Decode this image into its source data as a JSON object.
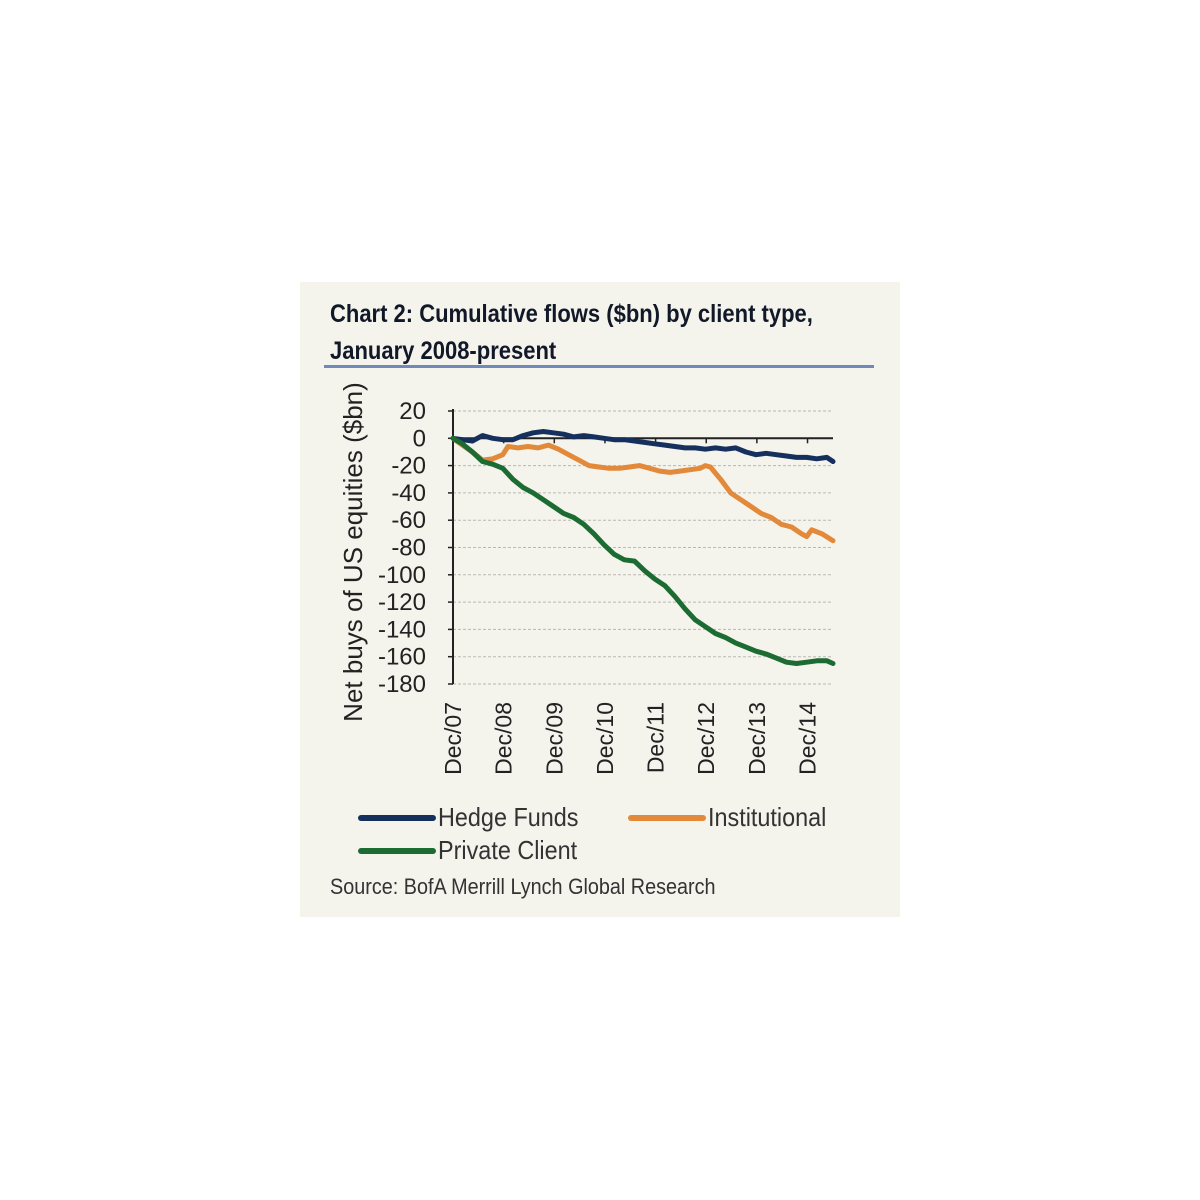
{
  "title_line1": "Chart 2: Cumulative flows ($bn) by client type,",
  "title_line2": "January 2008-present",
  "source": "Source: BofA Merrill Lynch Global Research",
  "colors": {
    "hedge_funds": "#16305e",
    "institutional": "#e2893a",
    "private_client": "#1b6b32",
    "panel_background": "#f4f3ec",
    "title_rule": "#7089b8"
  },
  "chart_data": {
    "type": "line",
    "ylabel": "Net buys of US equities ($bn)",
    "xlabel": "",
    "ylim": [
      -180,
      20
    ],
    "yticks": [
      20,
      0,
      -20,
      -40,
      -60,
      -80,
      -100,
      -120,
      -140,
      -160,
      -180
    ],
    "xlim": [
      2007.917,
      2015.42
    ],
    "xticks": [
      {
        "label": "Dec/07",
        "x": 2007.917
      },
      {
        "label": "Dec/08",
        "x": 2008.917
      },
      {
        "label": "Dec/09",
        "x": 2009.917
      },
      {
        "label": "Dec/10",
        "x": 2010.917
      },
      {
        "label": "Dec/11",
        "x": 2011.917
      },
      {
        "label": "Dec/12",
        "x": 2012.917
      },
      {
        "label": "Dec/13",
        "x": 2013.917
      },
      {
        "label": "Dec/14",
        "x": 2014.917
      }
    ],
    "grid": true,
    "legend_position": "bottom",
    "series": [
      {
        "name": "Hedge Funds",
        "points": [
          [
            2007.917,
            0
          ],
          [
            2008.1,
            -1
          ],
          [
            2008.3,
            -2
          ],
          [
            2008.5,
            2
          ],
          [
            2008.7,
            0
          ],
          [
            2008.9,
            -1
          ],
          [
            2009.1,
            -1
          ],
          [
            2009.3,
            2
          ],
          [
            2009.5,
            4
          ],
          [
            2009.7,
            5
          ],
          [
            2009.9,
            4
          ],
          [
            2010.1,
            3
          ],
          [
            2010.3,
            1
          ],
          [
            2010.5,
            2
          ],
          [
            2010.7,
            1
          ],
          [
            2010.9,
            0
          ],
          [
            2011.1,
            -1
          ],
          [
            2011.3,
            -1
          ],
          [
            2011.5,
            -2
          ],
          [
            2011.7,
            -3
          ],
          [
            2011.9,
            -4
          ],
          [
            2012.1,
            -5
          ],
          [
            2012.3,
            -6
          ],
          [
            2012.5,
            -7
          ],
          [
            2012.7,
            -7
          ],
          [
            2012.9,
            -8
          ],
          [
            2013.1,
            -7
          ],
          [
            2013.3,
            -8
          ],
          [
            2013.5,
            -7
          ],
          [
            2013.7,
            -10
          ],
          [
            2013.9,
            -12
          ],
          [
            2014.1,
            -11
          ],
          [
            2014.3,
            -12
          ],
          [
            2014.5,
            -13
          ],
          [
            2014.7,
            -14
          ],
          [
            2014.9,
            -14
          ],
          [
            2015.1,
            -15
          ],
          [
            2015.3,
            -14
          ],
          [
            2015.42,
            -17
          ]
        ]
      },
      {
        "name": "Institutional",
        "points": [
          [
            2007.917,
            0
          ],
          [
            2008.1,
            -5
          ],
          [
            2008.3,
            -10
          ],
          [
            2008.5,
            -16
          ],
          [
            2008.7,
            -15
          ],
          [
            2008.9,
            -12
          ],
          [
            2009.0,
            -6
          ],
          [
            2009.2,
            -7
          ],
          [
            2009.4,
            -6
          ],
          [
            2009.6,
            -7
          ],
          [
            2009.8,
            -5
          ],
          [
            2010.0,
            -8
          ],
          [
            2010.2,
            -12
          ],
          [
            2010.4,
            -16
          ],
          [
            2010.6,
            -20
          ],
          [
            2010.8,
            -21
          ],
          [
            2011.0,
            -22
          ],
          [
            2011.2,
            -22
          ],
          [
            2011.4,
            -21
          ],
          [
            2011.6,
            -20
          ],
          [
            2011.8,
            -22
          ],
          [
            2012.0,
            -24
          ],
          [
            2012.2,
            -25
          ],
          [
            2012.4,
            -24
          ],
          [
            2012.6,
            -23
          ],
          [
            2012.8,
            -22
          ],
          [
            2012.9,
            -20
          ],
          [
            2013.0,
            -21
          ],
          [
            2013.2,
            -30
          ],
          [
            2013.4,
            -40
          ],
          [
            2013.6,
            -45
          ],
          [
            2013.8,
            -50
          ],
          [
            2014.0,
            -55
          ],
          [
            2014.2,
            -58
          ],
          [
            2014.4,
            -63
          ],
          [
            2014.6,
            -65
          ],
          [
            2014.8,
            -70
          ],
          [
            2014.9,
            -72
          ],
          [
            2015.0,
            -67
          ],
          [
            2015.2,
            -70
          ],
          [
            2015.42,
            -75
          ]
        ]
      },
      {
        "name": "Private Client",
        "points": [
          [
            2007.917,
            0
          ],
          [
            2008.1,
            -4
          ],
          [
            2008.3,
            -10
          ],
          [
            2008.5,
            -17
          ],
          [
            2008.7,
            -19
          ],
          [
            2008.9,
            -22
          ],
          [
            2009.1,
            -30
          ],
          [
            2009.3,
            -36
          ],
          [
            2009.5,
            -40
          ],
          [
            2009.7,
            -45
          ],
          [
            2009.9,
            -50
          ],
          [
            2010.1,
            -55
          ],
          [
            2010.3,
            -58
          ],
          [
            2010.5,
            -63
          ],
          [
            2010.7,
            -70
          ],
          [
            2010.9,
            -78
          ],
          [
            2011.1,
            -85
          ],
          [
            2011.3,
            -89
          ],
          [
            2011.5,
            -90
          ],
          [
            2011.7,
            -97
          ],
          [
            2011.9,
            -103
          ],
          [
            2012.1,
            -108
          ],
          [
            2012.3,
            -116
          ],
          [
            2012.5,
            -125
          ],
          [
            2012.7,
            -133
          ],
          [
            2012.9,
            -138
          ],
          [
            2013.1,
            -143
          ],
          [
            2013.3,
            -146
          ],
          [
            2013.5,
            -150
          ],
          [
            2013.7,
            -153
          ],
          [
            2013.9,
            -156
          ],
          [
            2014.1,
            -158
          ],
          [
            2014.3,
            -161
          ],
          [
            2014.5,
            -164
          ],
          [
            2014.7,
            -165
          ],
          [
            2014.9,
            -164
          ],
          [
            2015.1,
            -163
          ],
          [
            2015.3,
            -163
          ],
          [
            2015.42,
            -165
          ]
        ]
      }
    ]
  }
}
